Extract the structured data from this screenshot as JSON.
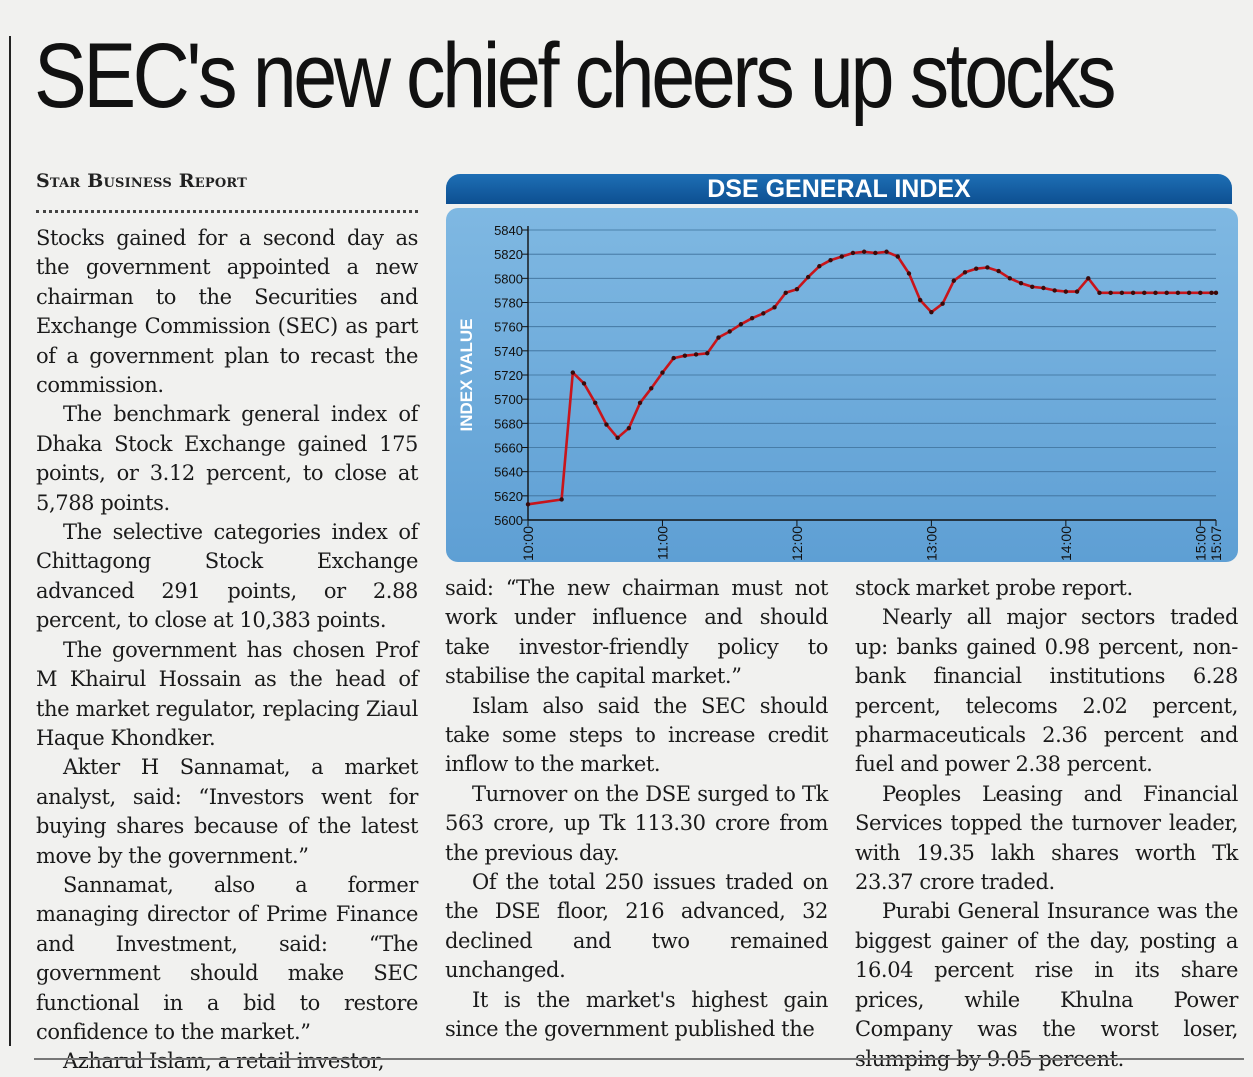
{
  "headline": "SEC's new chief cheers up stocks",
  "byline": "Star Business Report",
  "chart": {
    "title": "DSE GENERAL INDEX",
    "ylabel": "INDEX VALUE",
    "line_color": "#c8151b",
    "panel_color": "#6fabdb"
  },
  "chart_data": {
    "type": "line",
    "title": "DSE GENERAL INDEX",
    "xlabel": "",
    "ylabel": "INDEX VALUE",
    "ylim": [
      5600,
      5840
    ],
    "yticks": [
      5600,
      5620,
      5640,
      5660,
      5680,
      5700,
      5720,
      5740,
      5760,
      5780,
      5800,
      5820,
      5840
    ],
    "xticks": [
      "10:00",
      "11:00",
      "12:00",
      "13:00",
      "14:00",
      "15:00",
      "15:07"
    ],
    "grid": true,
    "series": [
      {
        "x": [
          "10:00",
          "10:15",
          "10:20",
          "10:25",
          "10:30",
          "10:35",
          "10:40",
          "10:45",
          "10:50",
          "10:55",
          "11:00",
          "11:05",
          "11:10",
          "11:15",
          "11:20",
          "11:25",
          "11:30",
          "11:35",
          "11:40",
          "11:45",
          "11:50",
          "11:55",
          "12:00",
          "12:05",
          "12:10",
          "12:15",
          "12:20",
          "12:25",
          "12:30",
          "12:35",
          "12:40",
          "12:45",
          "12:50",
          "12:55",
          "13:00",
          "13:05",
          "13:10",
          "13:15",
          "13:20",
          "13:25",
          "13:30",
          "13:35",
          "13:40",
          "13:45",
          "13:50",
          "13:55",
          "14:00",
          "14:05",
          "14:10",
          "14:15",
          "14:20",
          "14:25",
          "14:30",
          "14:35",
          "14:40",
          "14:45",
          "14:50",
          "14:55",
          "15:00",
          "15:05",
          "15:07"
        ],
        "values": [
          5613,
          5617,
          5722,
          5713,
          5697,
          5679,
          5668,
          5676,
          5697,
          5709,
          5722,
          5734,
          5736,
          5737,
          5738,
          5751,
          5756,
          5762,
          5767,
          5771,
          5776,
          5788,
          5791,
          5801,
          5810,
          5815,
          5818,
          5821,
          5822,
          5821,
          5822,
          5818,
          5804,
          5782,
          5772,
          5779,
          5798,
          5805,
          5808,
          5809,
          5806,
          5800,
          5796,
          5793,
          5792,
          5790,
          5789,
          5789,
          5800,
          5788,
          5788,
          5788,
          5788,
          5788,
          5788,
          5788,
          5788,
          5788,
          5788,
          5788,
          5788
        ]
      }
    ]
  },
  "columns": {
    "col1": [
      "Stocks gained for a second day as the government appointed a new chairman to the Securities and Exchange Commission (SEC) as part of a government plan to recast the commission.",
      "The benchmark general index of Dhaka Stock Exchange gained 175 points, or 3.12 percent, to close at 5,788 points.",
      "The selective categories index of Chittagong Stock Exchange advanced 291 points, or 2.88 percent, to close at 10,383 points.",
      "The government has chosen Prof M Khairul Hossain as the head of the market regulator, replacing Ziaul Haque Khondker.",
      "Akter H Sannamat, a market analyst, said: “Investors went for buying shares because of the latest move by the government.”",
      "Sannamat, also a former managing director of Prime Finance and Investment, said: “The government should make SEC functional in a bid to restore confidence to the market.”",
      "Azharul Islam, a retail investor,"
    ],
    "col2": [
      "said: “The new chairman must not work under influence and should take investor-friendly policy to stabilise the capital market.”",
      "Islam also said the SEC should take some steps to increase credit inflow to the market.",
      "Turnover on the DSE surged to Tk 563 crore, up Tk 113.30 crore from the previous day.",
      "Of the total 250 issues traded on the DSE floor, 216 advanced, 32 declined and two remained unchanged.",
      "It is the market's highest gain since the government published the"
    ],
    "col3": [
      "stock market probe report.",
      "Nearly all major sectors traded up: banks gained 0.98 percent, non-bank financial institutions 6.28 percent, telecoms 2.02 percent, pharmaceuticals 2.36 percent and fuel and power 2.38 percent.",
      "Peoples Leasing and Financial Services topped the turnover leader, with 19.35 lakh shares worth Tk 23.37 crore traded.",
      "Purabi General Insurance was the biggest gainer of the day, posting a 16.04 percent rise in its share prices, while Khulna Power Company was the worst loser, slumping by 9.05 percent."
    ]
  }
}
